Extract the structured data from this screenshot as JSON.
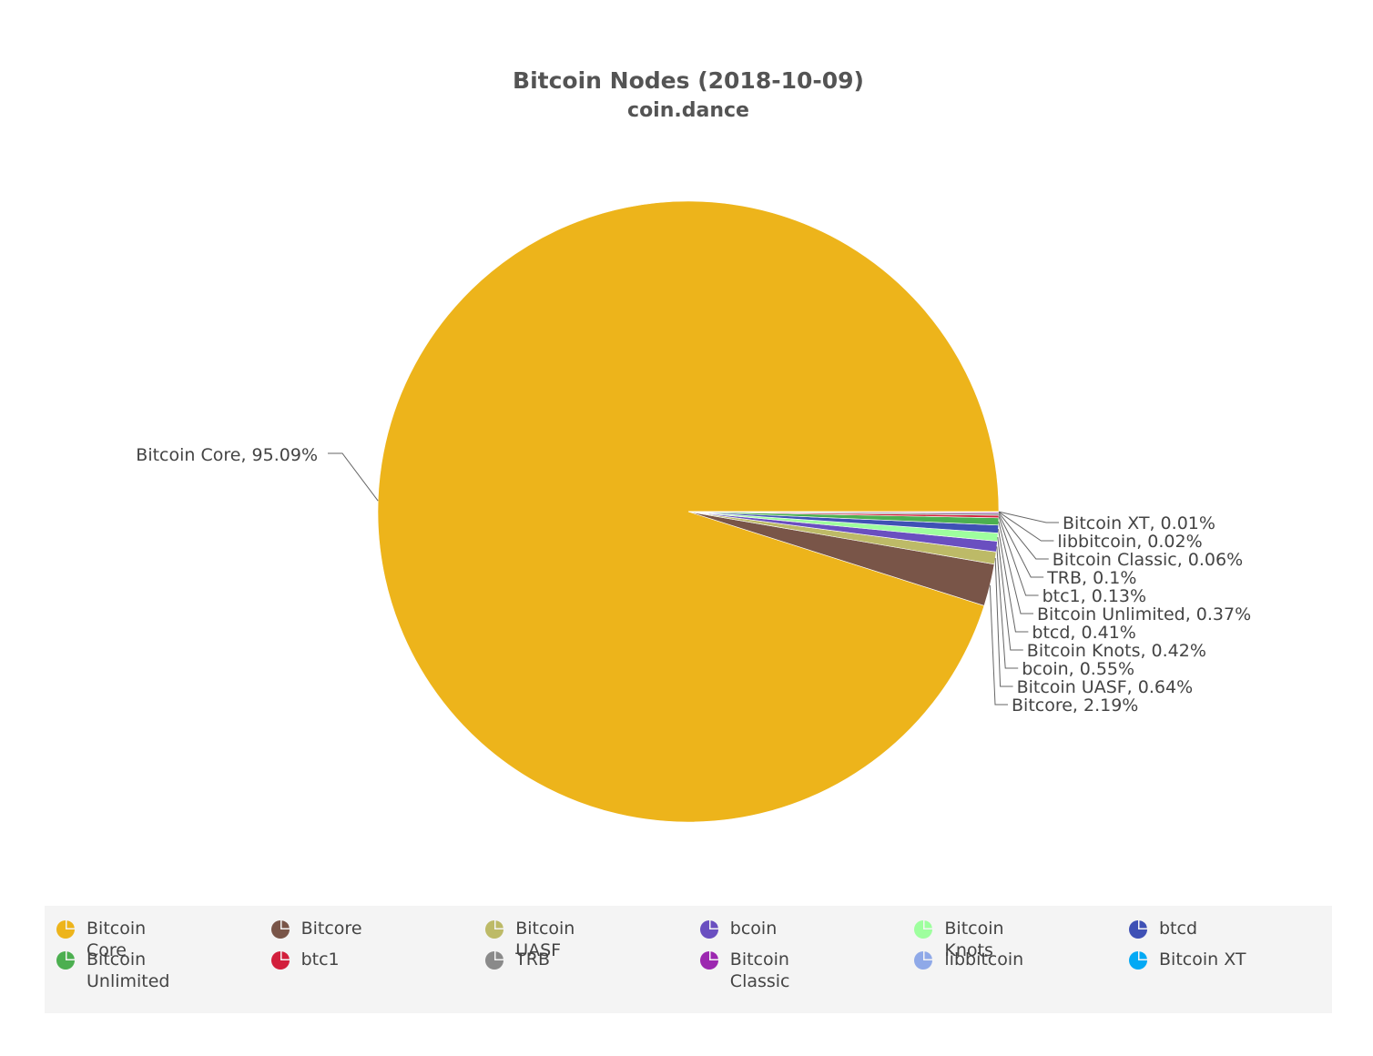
{
  "chart_data": {
    "type": "pie",
    "title": "Bitcoin Nodes (2018-10-09)",
    "subtitle": "coin.dance",
    "slices": [
      {
        "name": "Bitcoin Core",
        "value": 95.09,
        "label": "Bitcoin Core, 95.09%",
        "color": "#EDB41B"
      },
      {
        "name": "Bitcore",
        "value": 2.19,
        "label": "Bitcore, 2.19%",
        "color": "#795548"
      },
      {
        "name": "Bitcoin UASF",
        "value": 0.64,
        "label": "Bitcoin UASF, 0.64%",
        "color": "#BDBA67"
      },
      {
        "name": "bcoin",
        "value": 0.55,
        "label": "bcoin, 0.55%",
        "color": "#6A4FC0"
      },
      {
        "name": "Bitcoin Knots",
        "value": 0.42,
        "label": "Bitcoin Knots, 0.42%",
        "color": "#9EFF9E"
      },
      {
        "name": "btcd",
        "value": 0.41,
        "label": "btcd, 0.41%",
        "color": "#3F51B5"
      },
      {
        "name": "Bitcoin Unlimited",
        "value": 0.37,
        "label": "Bitcoin Unlimited, 0.37%",
        "color": "#4CAF50"
      },
      {
        "name": "btc1",
        "value": 0.13,
        "label": "btc1, 0.13%",
        "color": "#D21F3C"
      },
      {
        "name": "TRB",
        "value": 0.1,
        "label": "TRB, 0.1%",
        "color": "#8A8A8A"
      },
      {
        "name": "Bitcoin Classic",
        "value": 0.06,
        "label": "Bitcoin Classic, 0.06%",
        "color": "#9C27B0"
      },
      {
        "name": "libbitcoin",
        "value": 0.02,
        "label": "libbitcoin, 0.02%",
        "color": "#8FA9E8"
      },
      {
        "name": "Bitcoin XT",
        "value": 0.01,
        "label": "Bitcoin XT, 0.01%",
        "color": "#03A9F4"
      }
    ],
    "legend": {
      "placement": "bottom",
      "items": [
        {
          "name": "Bitcoin Core",
          "line1": "Bitcoin Core",
          "line2": "",
          "color": "#EDB41B"
        },
        {
          "name": "Bitcore",
          "line1": "Bitcore",
          "line2": "",
          "color": "#795548"
        },
        {
          "name": "Bitcoin UASF",
          "line1": "Bitcoin UASF",
          "line2": "",
          "color": "#BDBA67"
        },
        {
          "name": "bcoin",
          "line1": "bcoin",
          "line2": "",
          "color": "#6A4FC0"
        },
        {
          "name": "Bitcoin Knots",
          "line1": "Bitcoin Knots",
          "line2": "",
          "color": "#9EFF9E"
        },
        {
          "name": "btcd",
          "line1": "btcd",
          "line2": "",
          "color": "#3F51B5"
        },
        {
          "name": "Bitcoin Unlimited",
          "line1": "Bitcoin",
          "line2": "Unlimited",
          "color": "#4CAF50"
        },
        {
          "name": "btc1",
          "line1": "btc1",
          "line2": "",
          "color": "#D21F3C"
        },
        {
          "name": "TRB",
          "line1": "TRB",
          "line2": "",
          "color": "#8A8A8A"
        },
        {
          "name": "Bitcoin Classic",
          "line1": "Bitcoin Classic",
          "line2": "",
          "color": "#9C27B0"
        },
        {
          "name": "libbitcoin",
          "line1": "libbitcoin",
          "line2": "",
          "color": "#8FA9E8"
        },
        {
          "name": "Bitcoin XT",
          "line1": "Bitcoin XT",
          "line2": "",
          "color": "#03A9F4"
        }
      ]
    }
  }
}
